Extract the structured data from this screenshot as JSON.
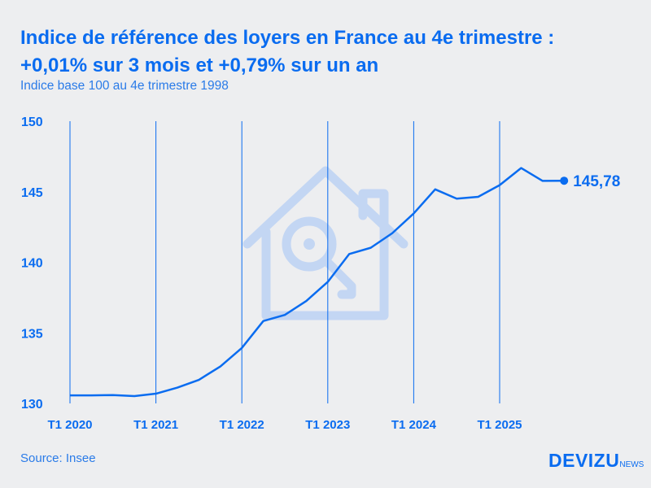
{
  "title_line1": "Indice de référence des loyers en France au 4e trimestre :",
  "title_line2": "+0,01% sur 3 mois et +0,79% sur un an",
  "subtitle": "Indice base 100 au 4e trimestre 1998",
  "source": "Source: Insee",
  "logo": {
    "main": "DEVIZU",
    "suffix": "NEWS"
  },
  "colors": {
    "accent": "#0a6cf0",
    "background": "#edeef0",
    "watermark": "#c3d6f3"
  },
  "watermark_icon": "house-key-icon",
  "chart_data": {
    "type": "line",
    "title": "Indice de référence des loyers en France au 4e trimestre : +0,01% sur 3 mois et +0,79% sur un an",
    "subtitle": "Indice base 100 au 4e trimestre 1998",
    "ylim": [
      130,
      150
    ],
    "yticks": [
      "130",
      "135",
      "140",
      "145",
      "150"
    ],
    "xticks": [
      "T1 2020",
      "T1 2021",
      "T1 2022",
      "T1 2023",
      "T1 2024",
      "T1 2025"
    ],
    "grid": "vertical",
    "end_label": "145,78",
    "x": [
      "T1 2020",
      "T2 2020",
      "T3 2020",
      "T4 2020",
      "T1 2021",
      "T2 2021",
      "T3 2021",
      "T4 2021",
      "T1 2022",
      "T2 2022",
      "T3 2022",
      "T4 2022",
      "T1 2023",
      "T2 2023",
      "T3 2023",
      "T4 2023",
      "T1 2024",
      "T2 2024",
      "T3 2024",
      "T4 2024",
      "T1 2025",
      "T2 2025",
      "T3 2025",
      "T4 2025"
    ],
    "values": [
      130.57,
      130.57,
      130.59,
      130.52,
      130.69,
      131.12,
      131.67,
      132.62,
      133.93,
      135.84,
      136.27,
      137.26,
      138.61,
      140.59,
      141.03,
      142.06,
      143.46,
      145.17,
      144.51,
      144.64,
      145.47,
      146.68,
      145.77,
      145.78
    ]
  }
}
